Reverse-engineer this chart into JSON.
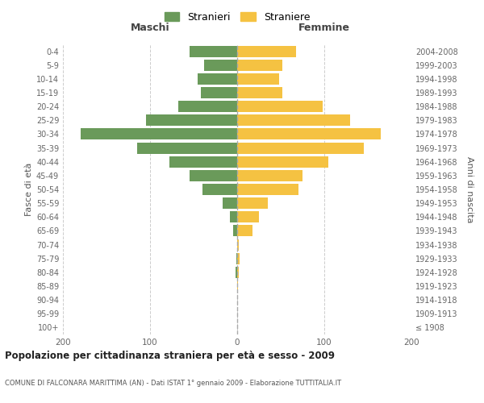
{
  "age_groups": [
    "100+",
    "95-99",
    "90-94",
    "85-89",
    "80-84",
    "75-79",
    "70-74",
    "65-69",
    "60-64",
    "55-59",
    "50-54",
    "45-49",
    "40-44",
    "35-39",
    "30-34",
    "25-29",
    "20-24",
    "15-19",
    "10-14",
    "5-9",
    "0-4"
  ],
  "birth_years": [
    "≤ 1908",
    "1909-1913",
    "1914-1918",
    "1919-1923",
    "1924-1928",
    "1929-1933",
    "1934-1938",
    "1939-1943",
    "1944-1948",
    "1949-1953",
    "1954-1958",
    "1959-1963",
    "1964-1968",
    "1969-1973",
    "1974-1978",
    "1979-1983",
    "1984-1988",
    "1989-1993",
    "1994-1998",
    "1999-2003",
    "2004-2008"
  ],
  "males": [
    0,
    0,
    0,
    0,
    2,
    1,
    0,
    5,
    8,
    17,
    40,
    55,
    78,
    115,
    180,
    105,
    68,
    42,
    45,
    38,
    55
  ],
  "females": [
    0,
    0,
    0,
    1,
    2,
    3,
    2,
    18,
    25,
    35,
    70,
    75,
    105,
    145,
    165,
    130,
    98,
    52,
    48,
    52,
    68
  ],
  "male_color": "#6a9a5a",
  "female_color": "#f5c242",
  "background_color": "#ffffff",
  "grid_color": "#cccccc",
  "zero_line_color": "#aaaaaa",
  "title": "Popolazione per cittadinanza straniera per età e sesso - 2009",
  "subtitle": "COMUNE DI FALCONARA MARITTIMA (AN) - Dati ISTAT 1° gennaio 2009 - Elaborazione TUTTITALIA.IT",
  "xlabel_left": "Maschi",
  "xlabel_right": "Femmine",
  "ylabel_left": "Fasce di età",
  "ylabel_right": "Anni di nascita",
  "legend_stranieri": "Stranieri",
  "legend_straniere": "Straniere",
  "xlim": 200
}
